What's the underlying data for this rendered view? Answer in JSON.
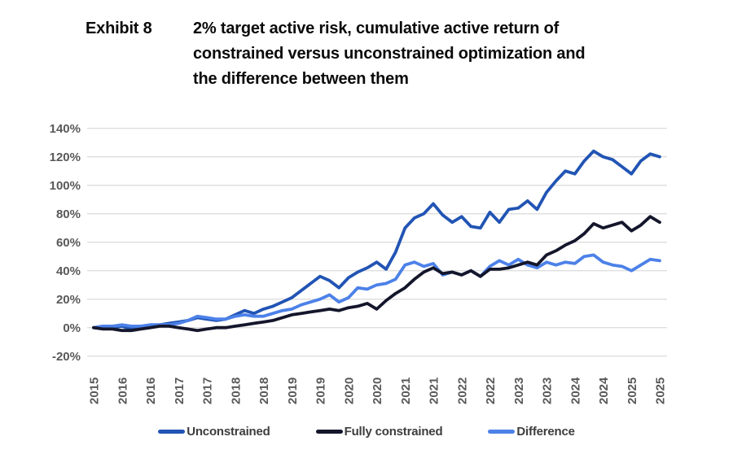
{
  "header": {
    "exhibit_label": "Exhibit 8",
    "title_lines": [
      "2% target active risk, cumulative active return of",
      "constrained versus unconstrained optimization and",
      "the difference between them"
    ]
  },
  "colors": {
    "grid": "#dedede",
    "axis_label": "#595959",
    "legend_text": "#3d3d3d",
    "title_text": "#0a0a0a",
    "unconstrained": "#2154b4",
    "fully_constrained": "#14162b",
    "difference": "#4c81e8"
  },
  "chart_data": {
    "type": "line",
    "title": "2% target active risk, cumulative active return of constrained versus unconstrained optimization and the difference between them",
    "xlabel": "",
    "ylabel": "",
    "grid": true,
    "legend_position": "bottom",
    "ylim": [
      -20,
      140
    ],
    "y_ticks_percent": [
      140,
      120,
      100,
      80,
      60,
      40,
      20,
      0,
      -20
    ],
    "y_tick_suffix": "%",
    "x_tick_labels": [
      "2015",
      "2016",
      "2016",
      "2017",
      "2017",
      "2018",
      "2018",
      "2019",
      "2019",
      "2020",
      "2020",
      "2021",
      "2021",
      "2022",
      "2022",
      "2023",
      "2023",
      "2024",
      "2024",
      "2025",
      "2025"
    ],
    "x_start_year": 2015.5,
    "x_step_years": 0.1667,
    "units": "percent cumulative active return",
    "series": [
      {
        "name": "Unconstrained",
        "color": "#2154b4",
        "values": [
          0,
          1,
          0,
          1,
          -1,
          0,
          1,
          2,
          3,
          4,
          5,
          7,
          6,
          5,
          6,
          9,
          12,
          10,
          13,
          15,
          18,
          21,
          26,
          31,
          36,
          33,
          28,
          35,
          39,
          42,
          46,
          41,
          53,
          70,
          77,
          80,
          87,
          79,
          74,
          78,
          71,
          70,
          81,
          74,
          83,
          84,
          89,
          83,
          95,
          103,
          110,
          108,
          117,
          124,
          120,
          118,
          113,
          108,
          117,
          122,
          120
        ]
      },
      {
        "name": "Fully constrained",
        "color": "#14162b",
        "values": [
          0,
          -1,
          -1,
          -2,
          -2,
          -1,
          0,
          1,
          1,
          0,
          -1,
          -2,
          -1,
          0,
          0,
          1,
          2,
          3,
          4,
          5,
          7,
          9,
          10,
          11,
          12,
          13,
          12,
          14,
          15,
          17,
          13,
          19,
          24,
          28,
          34,
          39,
          42,
          38,
          39,
          37,
          40,
          36,
          41,
          41,
          42,
          44,
          46,
          44,
          51,
          54,
          58,
          61,
          66,
          73,
          70,
          72,
          74,
          68,
          72,
          78,
          74
        ]
      },
      {
        "name": "Difference",
        "color": "#4c81e8",
        "values": [
          0,
          1,
          1,
          2,
          1,
          1,
          2,
          2,
          2,
          3,
          5,
          8,
          7,
          6,
          6,
          8,
          9,
          8,
          8,
          10,
          12,
          13,
          16,
          18,
          20,
          23,
          18,
          21,
          28,
          27,
          30,
          31,
          34,
          44,
          46,
          43,
          45,
          37,
          39,
          37,
          40,
          36,
          43,
          47,
          44,
          48,
          44,
          42,
          46,
          44,
          46,
          45,
          50,
          51,
          46,
          44,
          43,
          40,
          44,
          48,
          47
        ]
      }
    ]
  }
}
